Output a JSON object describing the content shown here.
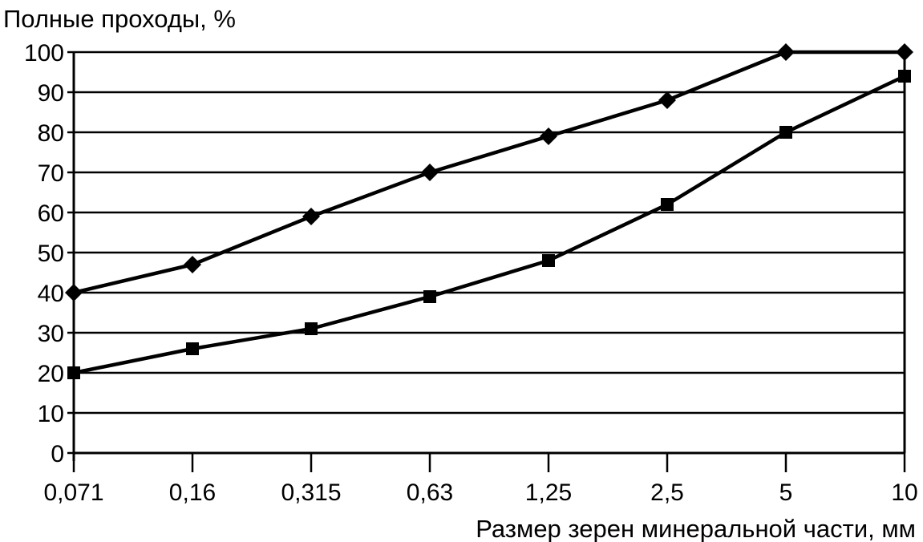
{
  "chart_data": {
    "type": "line",
    "title": "",
    "ylabel": "Полные проходы, %",
    "xlabel": "Размер зерен минеральной части, мм",
    "categories": [
      "0,071",
      "0,16",
      "0,315",
      "0,63",
      "1,25",
      "2,5",
      "5",
      "10"
    ],
    "ylim": [
      0,
      100
    ],
    "yticks": [
      0,
      10,
      20,
      30,
      40,
      50,
      60,
      70,
      80,
      90,
      100
    ],
    "grid": "horizontal",
    "legend": "none",
    "series": [
      {
        "marker": "diamond",
        "color": "#000000",
        "values": [
          40,
          47,
          59,
          70,
          79,
          88,
          100,
          100
        ]
      },
      {
        "marker": "square",
        "color": "#000000",
        "values": [
          20,
          26,
          31,
          39,
          48,
          62,
          80,
          94
        ]
      }
    ]
  }
}
